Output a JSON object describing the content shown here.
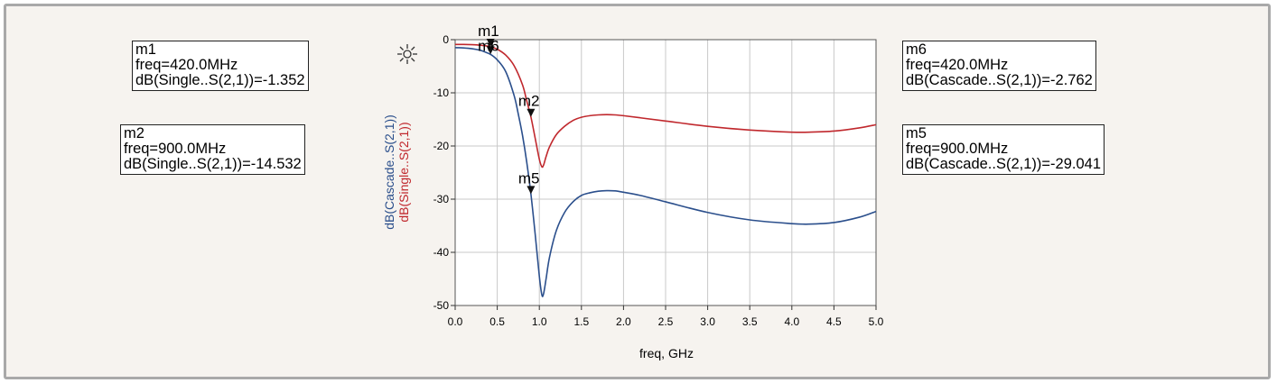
{
  "chart_data": {
    "type": "line",
    "xlabel": "freq, GHz",
    "ylabels": [
      "dB(Cascade..S(2,1))",
      "dB(Single..S(2,1))"
    ],
    "xlim": [
      0.0,
      5.0
    ],
    "ylim": [
      -50,
      0
    ],
    "xticks": [
      "0.0",
      "0.5",
      "1.0",
      "1.5",
      "2.0",
      "2.5",
      "3.0",
      "3.5",
      "4.0",
      "4.5",
      "5.0"
    ],
    "yticks": [
      "0",
      "-10",
      "-20",
      "-30",
      "-40",
      "-50"
    ],
    "grid": true,
    "series": [
      {
        "name": "dB(Single..S(2,1))",
        "color": "#c0282d",
        "x": [
          0.0,
          0.1,
          0.2,
          0.3,
          0.4,
          0.42,
          0.5,
          0.6,
          0.7,
          0.8,
          0.85,
          0.9,
          0.95,
          1.0,
          1.03,
          1.05,
          1.08,
          1.12,
          1.2,
          1.3,
          1.4,
          1.5,
          1.6,
          1.7,
          1.8,
          1.9,
          2.0,
          2.2,
          2.5,
          3.0,
          3.5,
          4.0,
          4.2,
          4.5,
          4.8,
          5.0
        ],
        "y": [
          -0.9,
          -0.9,
          -0.95,
          -1.05,
          -1.25,
          -1.352,
          -1.8,
          -2.9,
          -4.9,
          -8.5,
          -11.5,
          -14.532,
          -18.5,
          -22.5,
          -23.9,
          -23.6,
          -22.0,
          -20.2,
          -17.9,
          -16.3,
          -15.2,
          -14.6,
          -14.3,
          -14.15,
          -14.1,
          -14.15,
          -14.3,
          -14.7,
          -15.3,
          -16.3,
          -17.0,
          -17.4,
          -17.4,
          -17.2,
          -16.6,
          -16.0
        ]
      },
      {
        "name": "dB(Cascade..S(2,1))",
        "color": "#2b4f8c",
        "x": [
          0.0,
          0.1,
          0.2,
          0.3,
          0.35,
          0.42,
          0.5,
          0.6,
          0.7,
          0.75,
          0.8,
          0.85,
          0.9,
          0.95,
          1.0,
          1.03,
          1.05,
          1.08,
          1.12,
          1.2,
          1.3,
          1.4,
          1.5,
          1.6,
          1.7,
          1.8,
          1.9,
          2.0,
          2.2,
          2.5,
          3.0,
          3.5,
          4.0,
          4.2,
          4.5,
          4.8,
          5.0
        ],
        "y": [
          -1.5,
          -1.55,
          -1.7,
          -2.0,
          -2.3,
          -2.762,
          -3.8,
          -6.0,
          -10.5,
          -14.0,
          -18.0,
          -23.0,
          -29.041,
          -36.5,
          -44.5,
          -48.0,
          -47.8,
          -45.0,
          -41.0,
          -36.0,
          -32.5,
          -30.5,
          -29.3,
          -28.8,
          -28.5,
          -28.4,
          -28.45,
          -28.7,
          -29.3,
          -30.5,
          -32.5,
          -33.9,
          -34.6,
          -34.7,
          -34.4,
          -33.4,
          -32.3
        ]
      }
    ],
    "markers": [
      {
        "label": "m1",
        "series": 0,
        "x": 0.42,
        "y": -1.352
      },
      {
        "label": "m6",
        "series": 1,
        "x": 0.42,
        "y": -2.762
      },
      {
        "label": "m2",
        "series": 0,
        "x": 0.9,
        "y": -14.532
      },
      {
        "label": "m5",
        "series": 1,
        "x": 0.9,
        "y": -29.041
      }
    ]
  },
  "marker_boxes": {
    "m1": {
      "name": "m1",
      "freq": "freq=420.0MHz",
      "value": "dB(Single..S(2,1))=-1.352"
    },
    "m2": {
      "name": "m2",
      "freq": "freq=900.0MHz",
      "value": "dB(Single..S(2,1))=-14.532"
    },
    "m6": {
      "name": "m6",
      "freq": "freq=420.0MHz",
      "value": "dB(Cascade..S(2,1))=-2.762"
    },
    "m5": {
      "name": "m5",
      "freq": "freq=900.0MHz",
      "value": "dB(Cascade..S(2,1))=-29.041"
    }
  },
  "icons": {
    "toolbar": "sun-cursor-icon"
  }
}
